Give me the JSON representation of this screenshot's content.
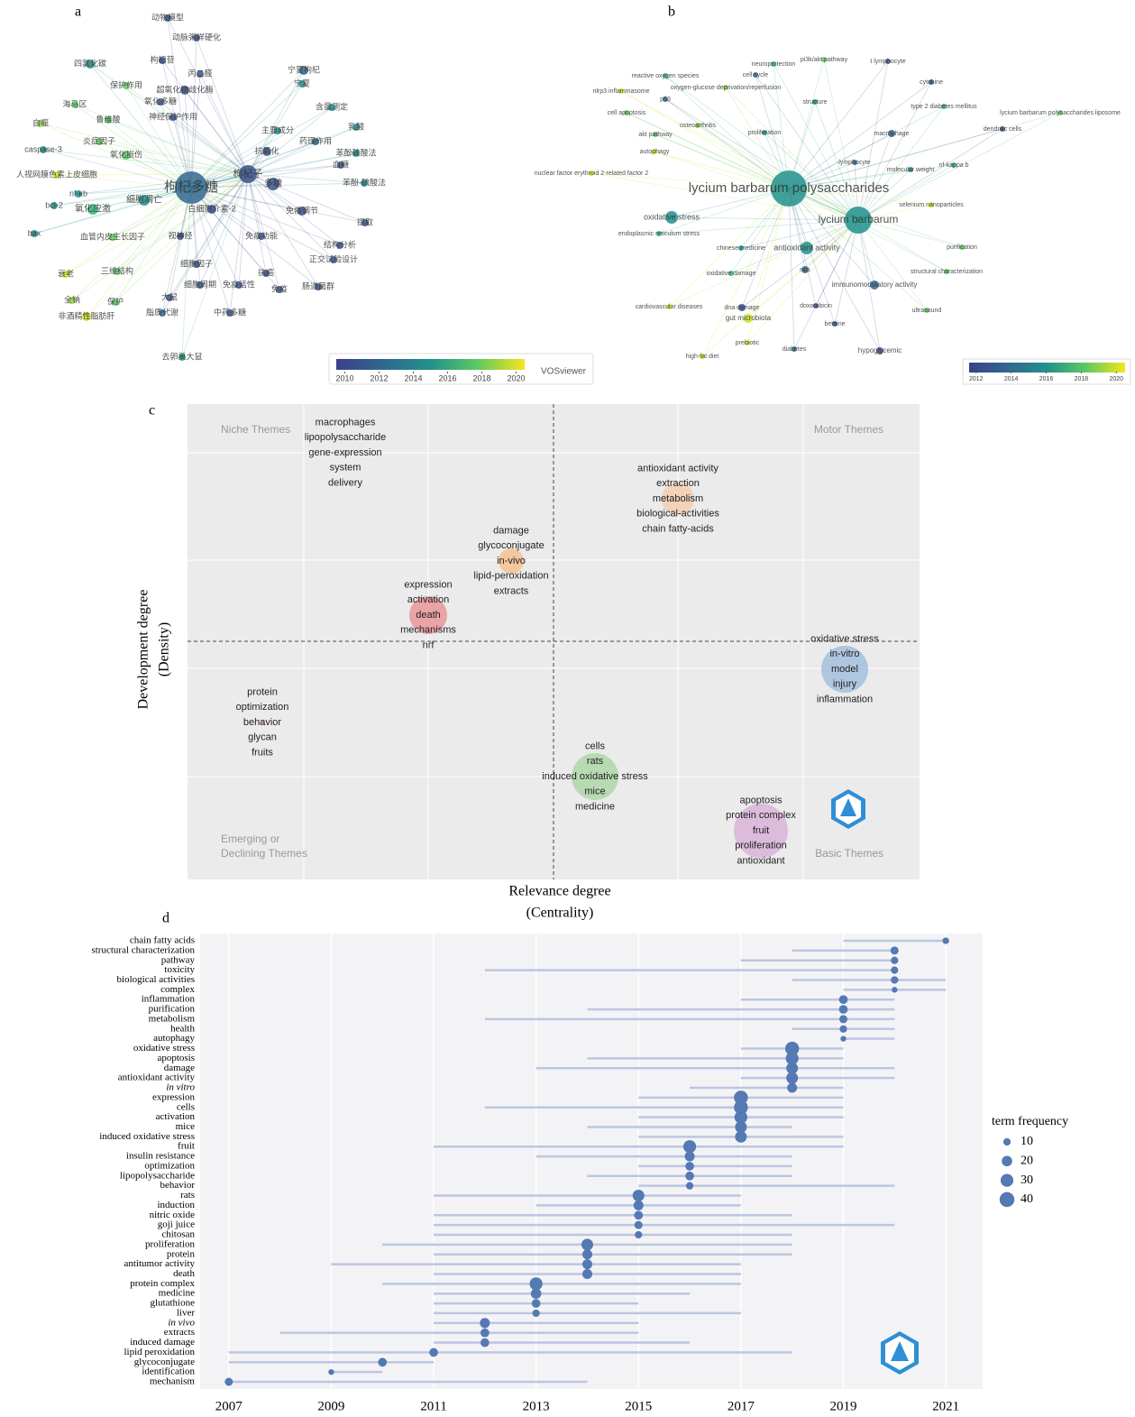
{
  "chart_data": [
    {
      "type": "network",
      "panel": "a",
      "nodes": [
        {
          "label": "动物模型",
          "color": "#3b528b"
        },
        {
          "label": "动脉粥样硬化",
          "color": "#3b528b"
        },
        {
          "label": "四氯化碳",
          "color": "#21918c"
        },
        {
          "label": "枸杞苷",
          "color": "#3b528b"
        },
        {
          "label": "丙二醛",
          "color": "#3b528b"
        },
        {
          "label": "宁夏枸杞",
          "color": "#31688e"
        },
        {
          "label": "保护作用",
          "color": "#5ec962"
        },
        {
          "label": "超氧化物歧化酶",
          "color": "#3b528b"
        },
        {
          "label": "宁夏",
          "color": "#21918c"
        },
        {
          "label": "氧化多糖",
          "color": "#3b528b"
        },
        {
          "label": "海马区",
          "color": "#5ec962"
        },
        {
          "label": "含量测定",
          "color": "#21918c"
        },
        {
          "label": "神经保护作用",
          "color": "#3b528b"
        },
        {
          "label": "自噬",
          "color": "#90d743"
        },
        {
          "label": "鲁维酸",
          "color": "#5ec962"
        },
        {
          "label": "主要成分",
          "color": "#21918c"
        },
        {
          "label": "乳酸",
          "color": "#21918c"
        },
        {
          "label": "炎症因子",
          "color": "#5ec962"
        },
        {
          "label": "药理作用",
          "color": "#31688e"
        },
        {
          "label": "caspase-3",
          "color": "#21918c"
        },
        {
          "label": "抗氧化",
          "color": "#3b528b"
        },
        {
          "label": "氧化损伤",
          "color": "#5ec962"
        },
        {
          "label": "苯酚硫酸法",
          "color": "#21918c"
        },
        {
          "label": "血糖",
          "color": "#3b528b"
        },
        {
          "label": "人视网膜色素上皮细胞",
          "color": "#cde11d"
        },
        {
          "label": "枸杞子",
          "color": "#3b528b"
        },
        {
          "label": "枸杞多糖",
          "color": "#31688e"
        },
        {
          "label": "多糖",
          "color": "#3b528b"
        },
        {
          "label": "苯酚-硫酸法",
          "color": "#21918c"
        },
        {
          "label": "nf-κb",
          "color": "#21918c"
        },
        {
          "label": "细胞凋亡",
          "color": "#21918c"
        },
        {
          "label": "bcl-2",
          "color": "#21918c"
        },
        {
          "label": "氧化应激",
          "color": "#35b779"
        },
        {
          "label": "白细胞介素-2",
          "color": "#3b528b"
        },
        {
          "label": "免疫调节",
          "color": "#3b528b"
        },
        {
          "label": "提取",
          "color": "#3b528b"
        },
        {
          "label": "bax",
          "color": "#21918c"
        },
        {
          "label": "血管内皮生长因子",
          "color": "#5ec962"
        },
        {
          "label": "视神经",
          "color": "#3b528b"
        },
        {
          "label": "免疫功能",
          "color": "#3b528b"
        },
        {
          "label": "结构分析",
          "color": "#3b528b"
        },
        {
          "label": "正交试验设计",
          "color": "#3b528b"
        },
        {
          "label": "衰老",
          "color": "#cde11d"
        },
        {
          "label": "三维结构",
          "color": "#5ec962"
        },
        {
          "label": "细胞因子",
          "color": "#3b528b"
        },
        {
          "label": "细胞周期",
          "color": "#3b528b"
        },
        {
          "label": "免疫活性",
          "color": "#3b528b"
        },
        {
          "label": "抗癌",
          "color": "#3b528b"
        },
        {
          "label": "肠道菌群",
          "color": "#3b528b"
        },
        {
          "label": "全钠",
          "color": "#90d743"
        },
        {
          "label": "保护",
          "color": "#5ec962"
        },
        {
          "label": "免疫",
          "color": "#3b528b"
        },
        {
          "label": "大鼠",
          "color": "#3b528b"
        },
        {
          "label": "非酒精性脂肪肝",
          "color": "#cde11d"
        },
        {
          "label": "脂质代谢",
          "color": "#31688e"
        },
        {
          "label": "中药多糖",
          "color": "#3b528b"
        },
        {
          "label": "去卵巢大鼠",
          "color": "#35b779"
        }
      ],
      "colorbar": {
        "lim": [
          2009.5,
          2020.5
        ],
        "ticks": [
          2010,
          2012,
          2014,
          2016,
          2018,
          2020
        ]
      },
      "brand": "VOSviewer"
    },
    {
      "type": "network",
      "panel": "b",
      "nodes": [
        {
          "label": "neuroprotection",
          "color": "#35b779"
        },
        {
          "label": "pi3k/akt pathway",
          "color": "#5ec962"
        },
        {
          "label": "t lymphocyte",
          "color": "#3b528b"
        },
        {
          "label": "reactive oxygen species",
          "color": "#35b779"
        },
        {
          "label": "cell cycle",
          "color": "#31688e"
        },
        {
          "label": "oxygen-glucose deprivation/reperfusion",
          "color": "#90d743"
        },
        {
          "label": "cytokine",
          "color": "#3b528b"
        },
        {
          "label": "nlrp3 inflammasome",
          "color": "#cde11d"
        },
        {
          "label": "p53",
          "color": "#31688e"
        },
        {
          "label": "structure",
          "color": "#21918c"
        },
        {
          "label": "type 2 diabetes mellitus",
          "color": "#35b779"
        },
        {
          "label": "lycium barbarum polysaccharides liposome",
          "color": "#5ec962"
        },
        {
          "label": "cell apoptosis",
          "color": "#5ec962"
        },
        {
          "label": "osteoarthritis",
          "color": "#90d743"
        },
        {
          "label": "akt pathway",
          "color": "#5ec962"
        },
        {
          "label": "proliferation",
          "color": "#21918c"
        },
        {
          "label": "macrophage",
          "color": "#31688e"
        },
        {
          "label": "dendritic cells",
          "color": "#3b528b"
        },
        {
          "label": "autophagy",
          "color": "#cde11d"
        },
        {
          "label": "lymphocyte",
          "color": "#31688e"
        },
        {
          "label": "nf-kappa b",
          "color": "#35b779"
        },
        {
          "label": "molecular weight",
          "color": "#21918c"
        },
        {
          "label": "nuclear factor erythroid 2-related factor 2",
          "color": "#cde11d"
        },
        {
          "label": "lycium barbarum polysaccharides",
          "color": "#21918c"
        },
        {
          "label": "selenium nanoparticles",
          "color": "#cde11d"
        },
        {
          "label": "oxidative stress",
          "color": "#21918c"
        },
        {
          "label": "lycium barbarum",
          "color": "#21918c"
        },
        {
          "label": "endoplasmic reticulum stress",
          "color": "#35b779"
        },
        {
          "label": "chinese medicine",
          "color": "#21918c"
        },
        {
          "label": "antioxidant activity",
          "color": "#21918c"
        },
        {
          "label": "purification",
          "color": "#5ec962"
        },
        {
          "label": "rats",
          "color": "#31688e"
        },
        {
          "label": "oxidative damage",
          "color": "#35b779"
        },
        {
          "label": "structural characterization",
          "color": "#5ec962"
        },
        {
          "label": "immunomodulatory activity",
          "color": "#31688e"
        },
        {
          "label": "cardiovascular diseases",
          "color": "#cde11d"
        },
        {
          "label": "dna damage",
          "color": "#3b528b"
        },
        {
          "label": "doxorubicin",
          "color": "#3b528b"
        },
        {
          "label": "ultrasound",
          "color": "#5ec962"
        },
        {
          "label": "gut microbiota",
          "color": "#cde11d"
        },
        {
          "label": "betaine",
          "color": "#3b528b"
        },
        {
          "label": "prebiotic",
          "color": "#cde11d"
        },
        {
          "label": "diabetes",
          "color": "#31688e"
        },
        {
          "label": "hypoglycemic",
          "color": "#3b528b"
        },
        {
          "label": "high-fat diet",
          "color": "#cde11d"
        }
      ],
      "colorbar": {
        "lim": [
          2011.6,
          2020.5
        ],
        "ticks": [
          2012,
          2014,
          2016,
          2018,
          2020
        ]
      }
    },
    {
      "type": "thematic_map",
      "panel": "c",
      "quadrants": [
        "Niche Themes",
        "Motor Themes",
        "Emerging or",
        "Declining Themes",
        "Basic Themes"
      ],
      "ylabel": [
        "Development degree",
        "(Density)"
      ],
      "xlabel": [
        "Relevance degree",
        "(Centrality)"
      ],
      "clusters": [
        {
          "terms": [
            "macrophages",
            "lipopolysaccharide",
            "gene-expression",
            "system",
            "delivery"
          ],
          "color": "#c7d8ee"
        },
        {
          "terms": [
            "antioxidant activity",
            "extraction",
            "metabolism",
            "biological-activities",
            "chain fatty-acids"
          ],
          "color": "#f3d2b8"
        },
        {
          "terms": [
            "damage",
            "glycoconjugate",
            "in-vivo",
            "lipid-peroxidation",
            "extracts"
          ],
          "color": "#f5c79e"
        },
        {
          "terms": [
            "expression",
            "activation",
            "death",
            "mechanisms",
            "nrf"
          ],
          "color": "#eaa3a6"
        },
        {
          "terms": [
            "oxidative stress",
            "in-vitro",
            "model",
            "injury",
            "inflammation"
          ],
          "color": "#afc6e0"
        },
        {
          "terms": [
            "protein",
            "optimization",
            "behavior",
            "glycan",
            "fruits"
          ],
          "color": "#e7b9d4"
        },
        {
          "terms": [
            "cells",
            "rats",
            "induced oxidative stress",
            "mice",
            "medicine"
          ],
          "color": "#b8dab2"
        },
        {
          "terms": [
            "apoptosis",
            "protein complex",
            "fruit",
            "proliferation",
            "antioxidant"
          ],
          "color": "#dcbcdc"
        }
      ]
    },
    {
      "type": "trend_topics",
      "panel": "d",
      "categories": [
        "chain fatty acids",
        "structural characterization",
        "pathway",
        "toxicity",
        "biological activities",
        "complex",
        "inflammation",
        "purification",
        "metabolism",
        "health",
        "autophagy",
        "oxidative stress",
        "apoptosis",
        "damage",
        "antioxidant activity",
        "in vitro",
        "expression",
        "cells",
        "activation",
        "mice",
        "induced oxidative stress",
        "fruit",
        "insulin resistance",
        "optimization",
        "lipopolysaccharide",
        "behavior",
        "rats",
        "induction",
        "nitric oxide",
        "goji juice",
        "chitosan",
        "proliferation",
        "protein",
        "antitumor activity",
        "death",
        "protein complex",
        "medicine",
        "glutathione",
        "liver",
        "in vivo",
        "extracts",
        "induced damage",
        "lipid peroxidation",
        "glycoconjugate",
        "identification",
        "mechanism"
      ],
      "values": [
        2021,
        2020,
        2020,
        2020,
        2020,
        2020,
        2019,
        2019,
        2019,
        2019,
        2019,
        2018,
        2018,
        2018,
        2018,
        2018,
        2017,
        2017,
        2017,
        2017,
        2017,
        2016,
        2016,
        2016,
        2016,
        2016,
        2015,
        2015,
        2015,
        2015,
        2015,
        2014,
        2014,
        2014,
        2014,
        2013,
        2013,
        2013,
        2013,
        2012,
        2012,
        2012,
        2011,
        2010,
        2009,
        2007
      ],
      "q1": [
        2019,
        2018,
        2017,
        2012,
        2018,
        2019,
        2017,
        2014,
        2012,
        2018,
        2019,
        2017,
        2014,
        2013,
        2017,
        2016,
        2015,
        2012,
        2015,
        2014,
        2015,
        2011,
        2013,
        2015,
        2014,
        2015,
        2011,
        2013,
        2011,
        2011,
        2011,
        2010,
        2011,
        2009,
        2011,
        2010,
        2011,
        2011,
        2011,
        2011,
        2008,
        2011,
        2007,
        2007,
        2009,
        2007
      ],
      "q3": [
        2021,
        2020,
        2020,
        2020,
        2021,
        2021,
        2020,
        2020,
        2020,
        2020,
        2020,
        2019,
        2019,
        2020,
        2020,
        2019,
        2019,
        2019,
        2019,
        2018,
        2019,
        2019,
        2018,
        2018,
        2018,
        2020,
        2017,
        2017,
        2018,
        2020,
        2018,
        2018,
        2018,
        2017,
        2017,
        2017,
        2016,
        2015,
        2017,
        2015,
        2015,
        2016,
        2018,
        2011,
        2010,
        2014
      ],
      "frequency": [
        8,
        12,
        10,
        10,
        10,
        6,
        14,
        14,
        12,
        10,
        6,
        35,
        30,
        25,
        25,
        18,
        35,
        35,
        30,
        25,
        25,
        30,
        18,
        14,
        14,
        10,
        25,
        18,
        14,
        12,
        10,
        25,
        18,
        18,
        18,
        30,
        20,
        14,
        10,
        18,
        14,
        14,
        14,
        14,
        6,
        12
      ],
      "xlim": [
        2006.44,
        2021.72
      ],
      "xticks": [
        2007,
        2009,
        2011,
        2013,
        2015,
        2017,
        2019,
        2021
      ],
      "color": "#5479b3",
      "range_color": "#bcc6e0",
      "size_legend": {
        "title": "term frequency",
        "values": [
          10,
          20,
          30,
          40
        ]
      }
    }
  ]
}
